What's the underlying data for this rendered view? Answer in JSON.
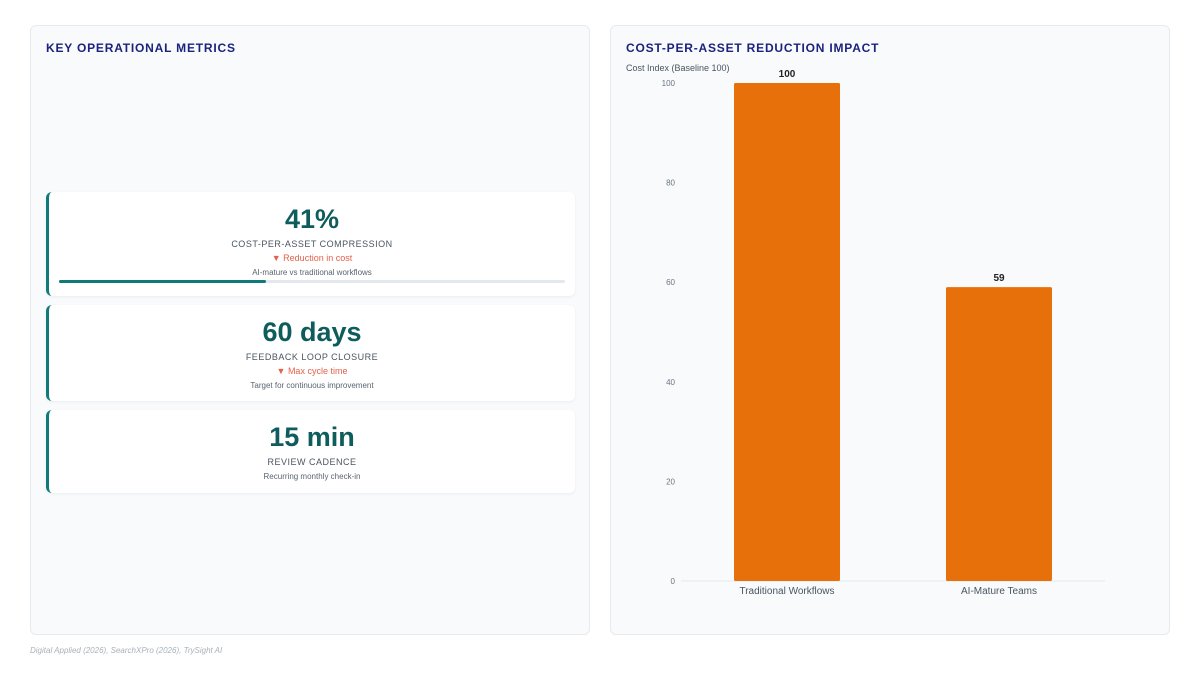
{
  "left_panel": {
    "title": "KEY OPERATIONAL METRICS",
    "metrics": [
      {
        "value": "41%",
        "label": "COST-PER-ASSET COMPRESSION",
        "delta": "▼ Reduction in cost",
        "note": "AI-mature vs traditional workflows",
        "progress": 0.41
      },
      {
        "value": "60 days",
        "label": "FEEDBACK LOOP CLOSURE",
        "delta": "▼ Max cycle time",
        "note": "Target for continuous improvement"
      },
      {
        "value": "15 min",
        "label": "REVIEW CADENCE",
        "note": "Recurring monthly check-in"
      }
    ]
  },
  "right_panel": {
    "title": "COST-PER-ASSET REDUCTION IMPACT"
  },
  "chart_data": {
    "type": "bar",
    "title": "COST-PER-ASSET REDUCTION IMPACT",
    "ylabel": "Cost Index (Baseline 100)",
    "xlabel": "",
    "categories": [
      "Traditional Workflows",
      "AI-Mature Teams"
    ],
    "values": [
      100,
      59
    ],
    "ylim": [
      0,
      100
    ],
    "yticks": [
      0,
      20,
      40,
      60,
      80,
      100
    ],
    "bar_color": "#e8700a",
    "grid": false,
    "data_labels": true
  },
  "colors": {
    "accent": "#0f7a7a",
    "title": "#1a237e",
    "delta": "#e4614b",
    "bar": "#e8700a"
  },
  "source": "Digital Applied (2026), SearchXPro (2026), TrySight AI"
}
